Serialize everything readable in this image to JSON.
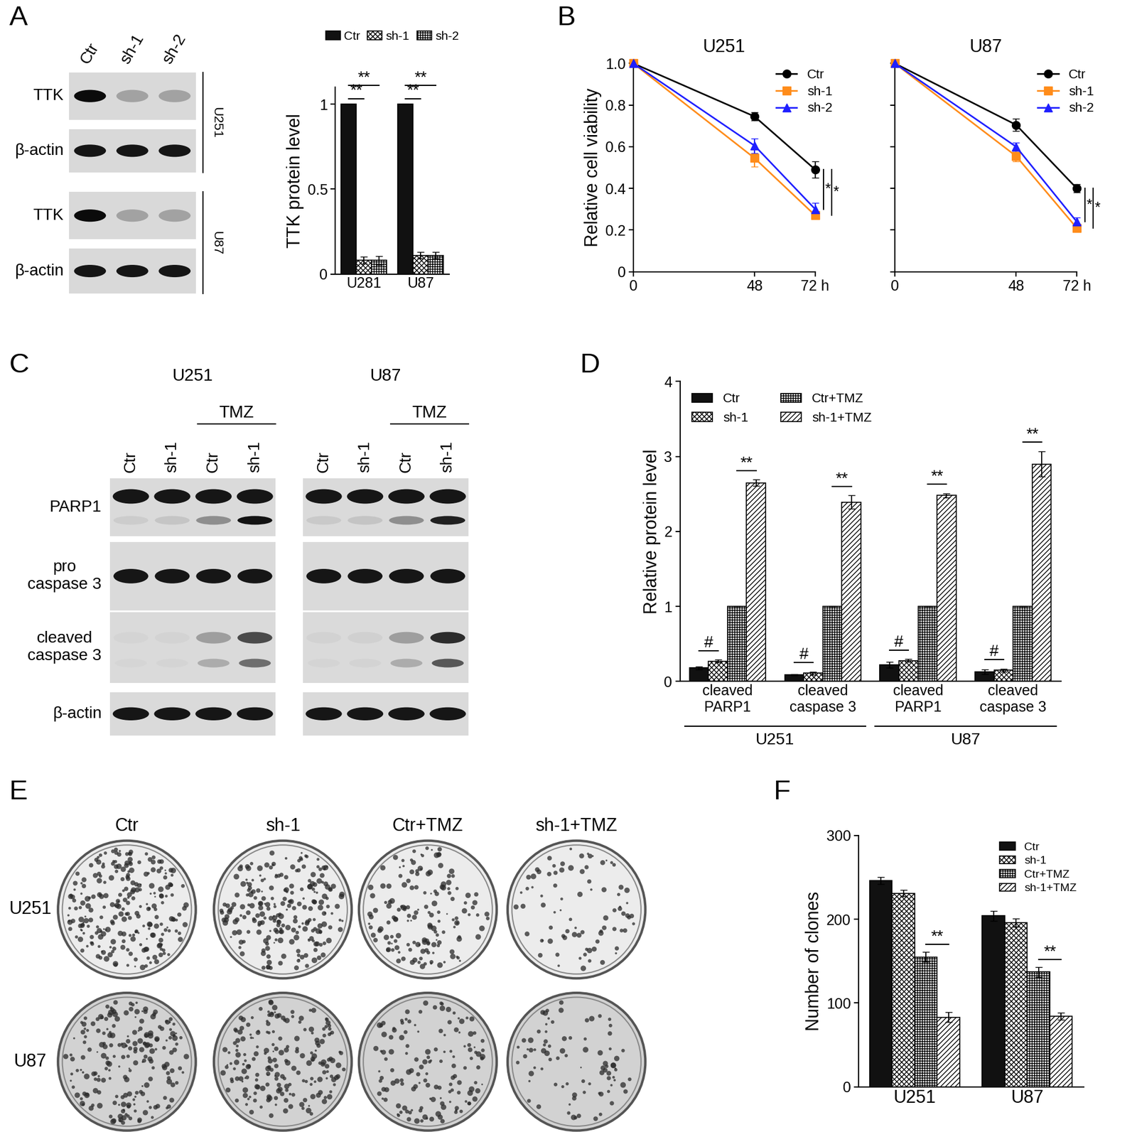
{
  "chart_data": [
    {
      "type": "bar",
      "ylabel": "TTK protein level",
      "categories": [
        "U281",
        "U87"
      ],
      "series": [
        {
          "name": "Ctr",
          "color": "#111111",
          "values": [
            1,
            1
          ],
          "errors": [
            0,
            0
          ]
        },
        {
          "name": "sh-1",
          "color": "#ffffff",
          "values": [
            0.08,
            0.11
          ],
          "errors": [
            0.02,
            0.02
          ]
        },
        {
          "name": "sh-2",
          "color": "#ffffff",
          "values": [
            0.08,
            0.11
          ],
          "errors": [
            0.025,
            0.02
          ]
        }
      ],
      "ylim": [
        0,
        1.1
      ],
      "yticks": [
        0,
        0.5,
        1
      ],
      "legend": "upper center",
      "significance": [
        {
          "pair": [
            "Ctr",
            "sh-1"
          ],
          "label": "**"
        },
        {
          "pair": [
            "Ctr",
            "sh-2"
          ],
          "label": "**"
        }
      ]
    },
    {
      "type": "line",
      "panel": "B",
      "title": "U251",
      "ylabel": "Relative cell viability",
      "x": [
        0,
        48,
        72
      ],
      "series": [
        {
          "name": "Ctr",
          "color": "#000000",
          "marker": "o",
          "values": [
            1,
            0.745,
            0.49
          ],
          "errors": [
            0,
            0.02,
            0.04
          ]
        },
        {
          "name": "sh-1",
          "color": "#ff8c1a",
          "marker": "s",
          "values": [
            1,
            0.545,
            0.27
          ],
          "errors": [
            0,
            0.04,
            0.015
          ]
        },
        {
          "name": "sh-2",
          "color": "#1f1fff",
          "marker": "^",
          "values": [
            1,
            0.605,
            0.3
          ],
          "errors": [
            0,
            0.035,
            0.03
          ]
        }
      ],
      "xlim": [
        0,
        72
      ],
      "xticks": [
        0,
        48,
        {
          "value": 72,
          "label": "72 h"
        }
      ],
      "ylim": [
        0,
        1.0
      ],
      "yticks": [
        0,
        0.2,
        0.4,
        0.6,
        0.8,
        1.0
      ],
      "legend": "upper right",
      "significance": [
        {
          "pair": [
            "Ctr",
            "sh-2"
          ],
          "label": "*"
        },
        {
          "pair": [
            "Ctr",
            "sh-1"
          ],
          "label": "*"
        }
      ]
    },
    {
      "type": "line",
      "title": "U87",
      "x": [
        0,
        48,
        72
      ],
      "series": [
        {
          "name": "Ctr",
          "color": "#000000",
          "marker": "o",
          "values": [
            1,
            0.705,
            0.4
          ],
          "errors": [
            0,
            0.03,
            0.02
          ]
        },
        {
          "name": "sh-1",
          "color": "#ff8c1a",
          "marker": "s",
          "values": [
            1,
            0.555,
            0.21
          ],
          "errors": [
            0,
            0.025,
            0.01
          ]
        },
        {
          "name": "sh-2",
          "color": "#1f1fff",
          "marker": "^",
          "values": [
            1,
            0.6,
            0.24
          ],
          "errors": [
            0,
            0.02,
            0.02
          ]
        }
      ],
      "xlim": [
        0,
        72
      ],
      "xticks": [
        0,
        48,
        {
          "value": 72,
          "label": "72 h"
        }
      ],
      "ylim": [
        0,
        1.0
      ],
      "yticks": [
        0,
        0.2,
        0.4,
        0.6,
        0.8,
        1.0
      ],
      "legend": "upper right",
      "tick_labels": "x",
      "significance": [
        {
          "pair": [
            "Ctr",
            "sh-2"
          ],
          "label": "*"
        },
        {
          "pair": [
            "Ctr",
            "sh-1"
          ],
          "label": "*"
        }
      ]
    },
    {
      "type": "bar",
      "panel": "D",
      "ylabel": "Relative protein level",
      "categories": [
        "cleaved\nPARP1",
        "cleaved\ncaspase 3",
        "cleaved\nPARP1",
        "cleaved\ncaspase 3"
      ],
      "group_of_category": [
        "U251",
        "U251",
        "U87",
        "U87"
      ],
      "series": [
        {
          "name": "Ctr",
          "color": "#111111",
          "values": [
            0.18,
            0.09,
            0.22,
            0.13
          ],
          "errors": [
            0.02,
            0.01,
            0.04,
            0.03
          ]
        },
        {
          "name": "sh-1",
          "color": "#ffffff",
          "values": [
            0.27,
            0.11,
            0.28,
            0.15
          ],
          "errors": [
            0.02,
            0.02,
            0.02,
            0.02
          ]
        },
        {
          "name": "Ctr+TMZ",
          "color": "#ffffff",
          "values": [
            1,
            1,
            1,
            1
          ],
          "errors": [
            0,
            0,
            0,
            0
          ]
        },
        {
          "name": "sh-1+TMZ",
          "color": "#ffffff",
          "values": [
            2.65,
            2.39,
            2.48,
            2.9
          ],
          "errors": [
            0.04,
            0.09,
            0.03,
            0.17
          ]
        }
      ],
      "ylim": [
        0,
        4
      ],
      "yticks": [
        0,
        1,
        2,
        3,
        4
      ],
      "legend": "upper left",
      "significance": [
        {
          "pair": [
            "Ctr",
            "sh-1"
          ],
          "label": "#"
        },
        {
          "pair": [
            "Ctr+TMZ",
            "sh-1+TMZ"
          ],
          "label": "**"
        }
      ]
    },
    {
      "type": "bar",
      "panel": "F",
      "ylabel": "Number of clones",
      "categories": [
        "U251",
        "U87"
      ],
      "series": [
        {
          "name": "Ctr",
          "color": "#111111",
          "values": [
            246,
            204
          ],
          "errors": [
            4,
            6
          ]
        },
        {
          "name": "sh-1",
          "color": "#ffffff",
          "values": [
            231,
            196
          ],
          "errors": [
            4,
            5
          ]
        },
        {
          "name": "Ctr+TMZ",
          "color": "#ffffff",
          "values": [
            155,
            137
          ],
          "errors": [
            6,
            6
          ]
        },
        {
          "name": "sh-1+TMZ",
          "color": "#ffffff",
          "values": [
            83,
            84
          ],
          "errors": [
            6,
            4
          ]
        }
      ],
      "ylim": [
        0,
        300
      ],
      "yticks": [
        0,
        100,
        200,
        300
      ],
      "legend": "upper right",
      "significance": [
        {
          "pair": [
            "Ctr+TMZ",
            "sh-1+TMZ"
          ],
          "label": "**"
        }
      ]
    }
  ],
  "blots": [
    {
      "panel": "A",
      "lanes": [
        "Ctr",
        "sh-1",
        "sh-2"
      ],
      "groups": [
        {
          "label": "U251",
          "rows": [
            "TTK",
            "β-actin"
          ]
        },
        {
          "label": "U87",
          "rows": [
            "TTK",
            "β-actin"
          ]
        }
      ]
    },
    {
      "panel": "C",
      "rows": [
        "PARP1",
        "pro\ncaspase 3",
        "cleaved\ncaspase 3",
        "β-actin"
      ],
      "groups": [
        {
          "label": "U251",
          "lanes": [
            "Ctr",
            "sh-1",
            "Ctr",
            "sh-1"
          ],
          "treatment": "TMZ"
        },
        {
          "label": "U87",
          "lanes": [
            "Ctr",
            "sh-1",
            "Ctr",
            "sh-1"
          ],
          "treatment": "TMZ"
        }
      ]
    }
  ],
  "plates": {
    "panel": "E",
    "columns": [
      "Ctr",
      "sh-1",
      "Ctr+TMZ",
      "sh-1+TMZ"
    ],
    "rows": [
      "U251",
      "U87"
    ]
  }
}
